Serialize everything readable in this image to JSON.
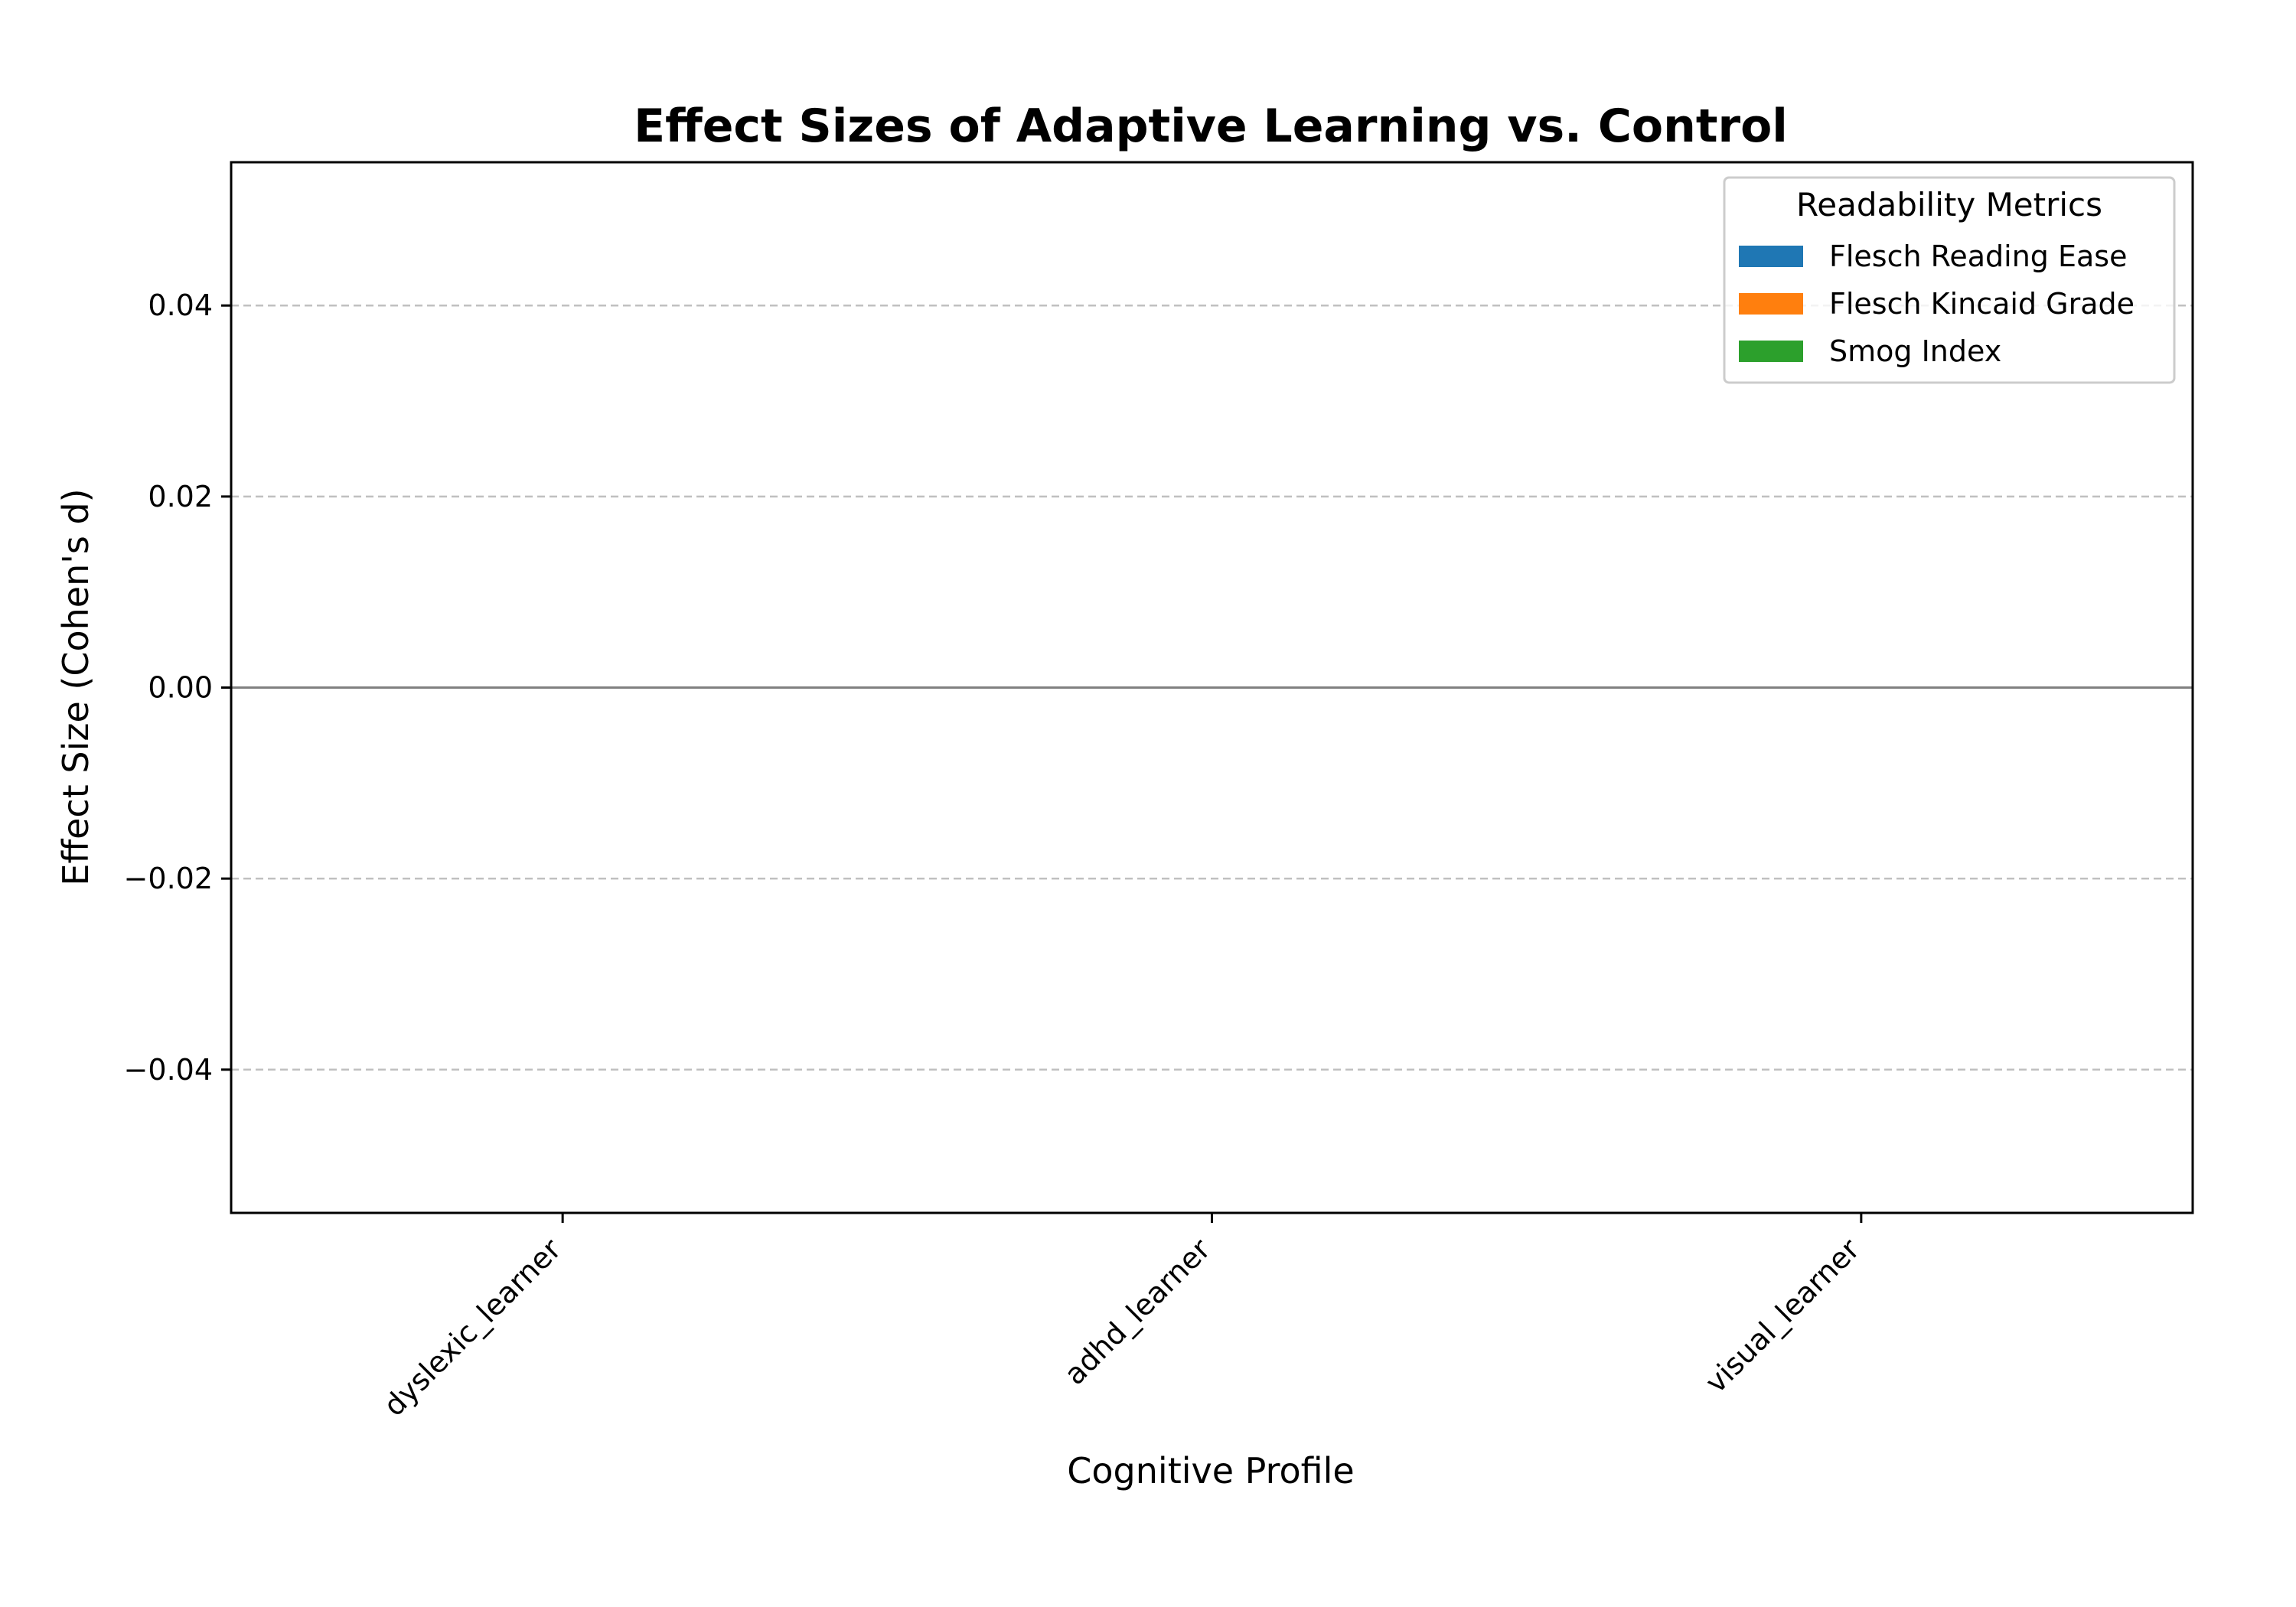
{
  "chart_data": {
    "type": "bar",
    "title": "Effect Sizes of Adaptive Learning vs. Control",
    "xlabel": "Cognitive Profile",
    "ylabel": "Effect Size (Cohen's d)",
    "categories": [
      "dyslexic_learner",
      "adhd_learner",
      "visual_learner"
    ],
    "series": [
      {
        "name": "Flesch Reading Ease",
        "color": "#1f77b4",
        "values": [
          0,
          0,
          0
        ]
      },
      {
        "name": "Flesch Kincaid Grade",
        "color": "#ff7f0e",
        "values": [
          0,
          0,
          0
        ]
      },
      {
        "name": "Smog Index",
        "color": "#2ca02c",
        "values": [
          0,
          0,
          0
        ]
      }
    ],
    "ylim": [
      -0.055,
      0.055
    ],
    "yticks": [
      -0.04,
      -0.02,
      0.0,
      0.02,
      0.04
    ],
    "ytick_labels": [
      "−0.04",
      "−0.02",
      "0.00",
      "0.02",
      "0.04"
    ],
    "grid": "y, dashed",
    "reference_line": 0,
    "legend": {
      "title": "Readability Metrics",
      "placement": "top-right"
    }
  }
}
